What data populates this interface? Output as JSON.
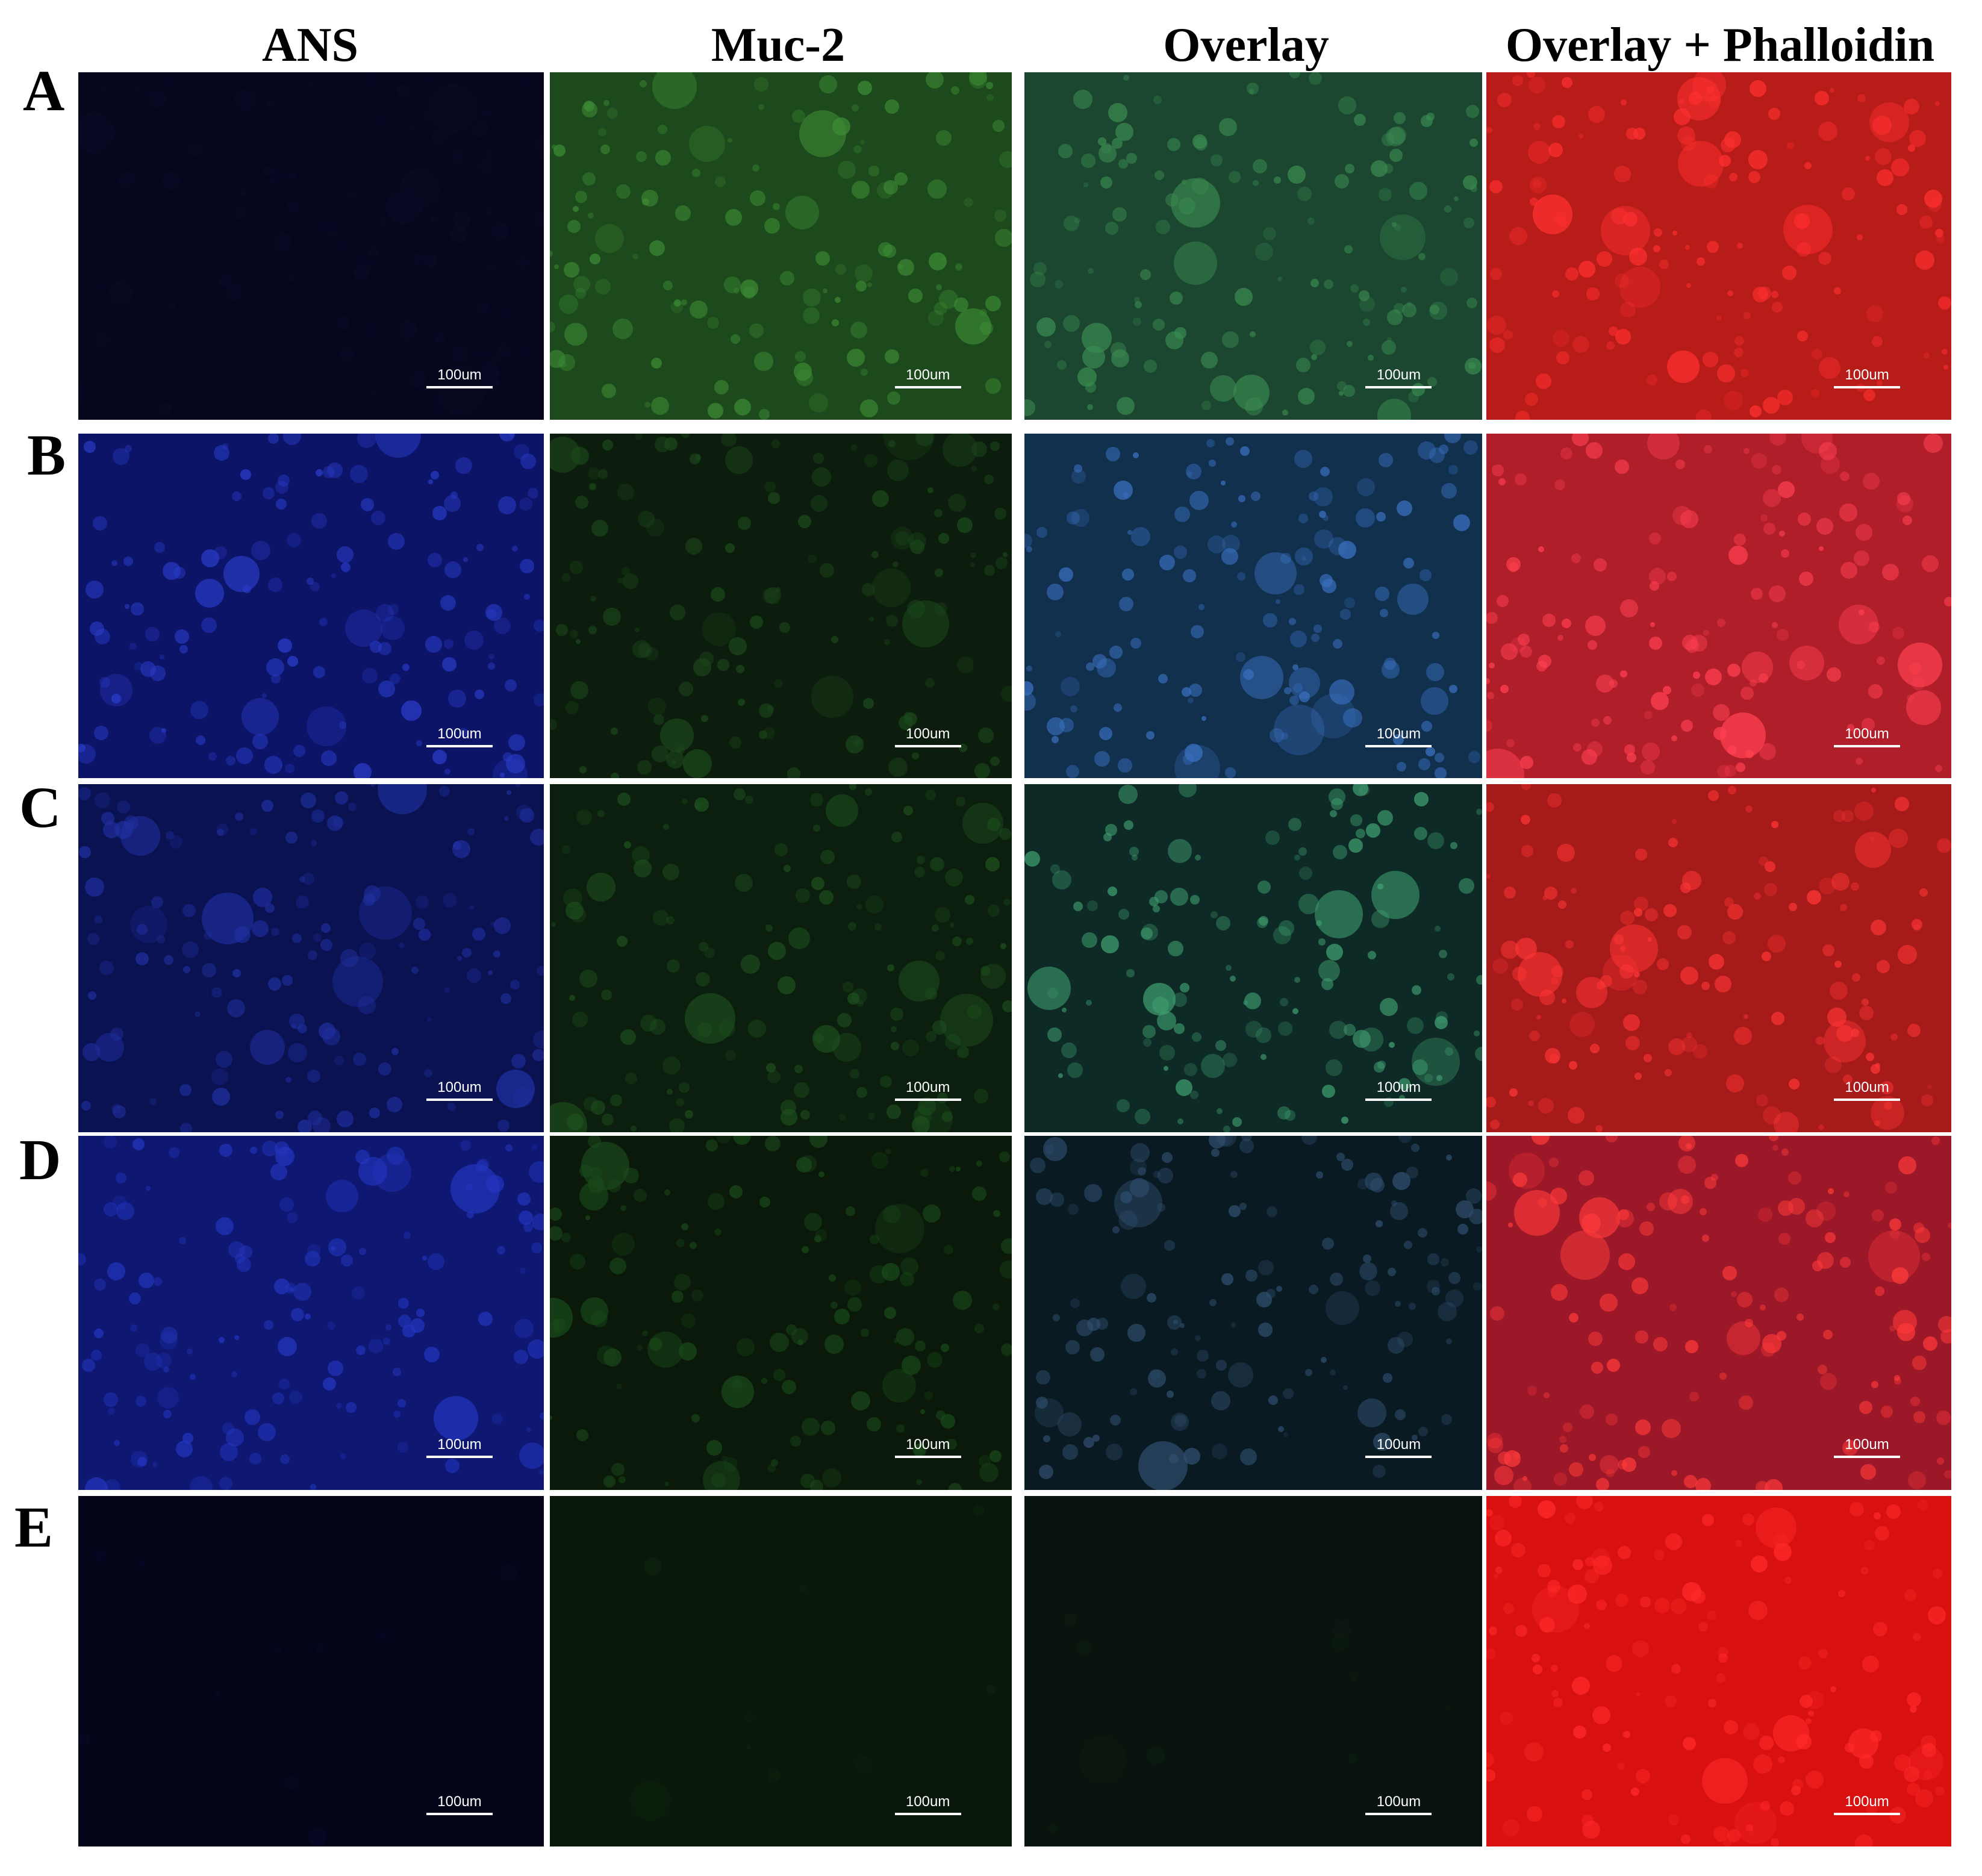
{
  "columns": [
    "ANS",
    "Muc-2",
    "Overlay",
    "Overlay + Phalloidin"
  ],
  "rows": [
    {
      "label": "A",
      "panels": [
        {
          "scale_bar": "100um"
        },
        {
          "scale_bar": "100um"
        },
        {
          "scale_bar": "100um"
        },
        {
          "scale_bar": "100um"
        }
      ]
    },
    {
      "label": "B",
      "panels": [
        {
          "scale_bar": "100um"
        },
        {
          "scale_bar": "100um"
        },
        {
          "scale_bar": "100um"
        },
        {
          "scale_bar": "100um"
        }
      ]
    },
    {
      "label": "C",
      "panels": [
        {
          "scale_bar": "100um"
        },
        {
          "scale_bar": "100um"
        },
        {
          "scale_bar": "100um"
        },
        {
          "scale_bar": "100um"
        }
      ]
    },
    {
      "label": "D",
      "panels": [
        {
          "scale_bar": "100um"
        },
        {
          "scale_bar": "100um"
        },
        {
          "scale_bar": "100um"
        },
        {
          "scale_bar": "100um"
        }
      ]
    },
    {
      "label": "E",
      "panels": [
        {
          "scale_bar": "100um"
        },
        {
          "scale_bar": "100um"
        },
        {
          "scale_bar": "100um"
        },
        {
          "scale_bar": "100um"
        }
      ]
    }
  ]
}
